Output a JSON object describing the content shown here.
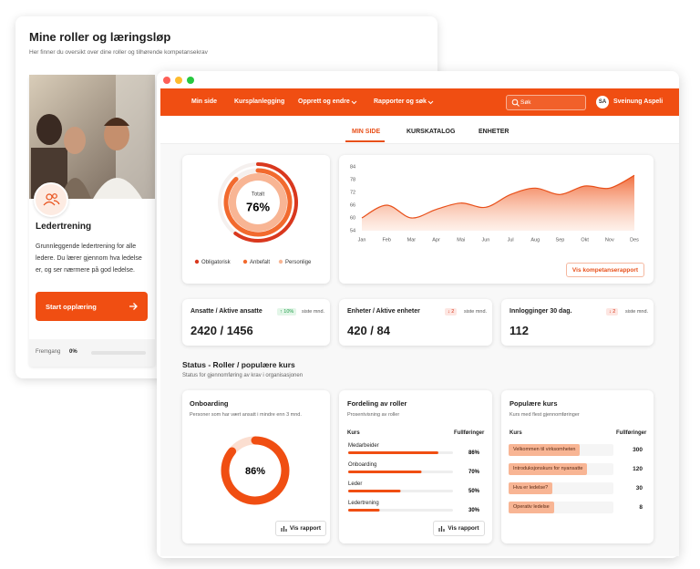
{
  "back_card": {
    "title": "Mine roller og læringsløp",
    "subtitle": "Her finner du oversikt over dine roller og tilhørende kompetansekrav",
    "course": {
      "title": "Ledertrening",
      "description": "Grunnleggende ledertrening for alle ledere. Du lærer gjennom hva ledelse er, og ser nærmere på god ledelse.",
      "button": "Start opplæring",
      "progress_label": "Fremgang",
      "progress": {
        "value": 0,
        "label": "0%"
      }
    }
  },
  "nav": {
    "items": [
      "Min side",
      "Kursplanlegging",
      "Opprett og endre",
      "Rapporter og søk"
    ],
    "search": "Søk",
    "user_initials": "SA",
    "user_name": "Sveinung Aspeli"
  },
  "tabs": [
    "MIN SIDE",
    "KURSKATALOG",
    "ENHETER"
  ],
  "overview_donut": {
    "center_label": "Totalt",
    "value": 76,
    "value_label": "76%",
    "series": [
      {
        "name": "Obligatorisk",
        "color": "#d9381e",
        "value": 60
      },
      {
        "name": "Anbefalt",
        "color": "#f26a2e",
        "value": 88
      },
      {
        "name": "Personlige",
        "color": "#f8b594",
        "value": 100
      }
    ]
  },
  "trend_chart": {
    "type": "area",
    "categories": [
      "Jan",
      "Feb",
      "Mar",
      "Apr",
      "Mai",
      "Jun",
      "Jul",
      "Aug",
      "Sep",
      "Okt",
      "Nov",
      "Des"
    ],
    "values": [
      60,
      66,
      60,
      64,
      67,
      65,
      71,
      74,
      71,
      75,
      74,
      80
    ],
    "color": "#e8501a",
    "ylim": [
      54,
      84
    ],
    "yticks": [
      54,
      60,
      66,
      72,
      78,
      84
    ],
    "button": "Vis kompetanserapport"
  },
  "kpis": [
    {
      "title": "Ansatte / Aktive ansatte",
      "badge": "↑ 10%",
      "badge_note": "siste mnd.",
      "value": "2420 / 1456"
    },
    {
      "title": "Enheter / Aktive enheter",
      "badge": "↓ 2",
      "badge_note": "siste mnd.",
      "value": "420 / 84"
    },
    {
      "title": "Innlogginger 30 dag.",
      "badge": "↓ 2",
      "badge_note": "siste mnd.",
      "value": "112"
    }
  ],
  "status": {
    "title": "Status - Roller / populære kurs",
    "subtitle": "Status for gjennomføring av krav i organisasjonen"
  },
  "onboarding": {
    "title": "Onboarding",
    "description": "Personer som har vært ansatt i mindre enn 3 mnd.",
    "value": 86,
    "value_label": "86%",
    "button": "Vis rapport"
  },
  "roles": {
    "title": "Fordeling av roller",
    "subtitle": "Prosentvisning av roller",
    "columns": [
      "Kurs",
      "Fullføringer"
    ],
    "button": "Vis rapport",
    "rows": [
      {
        "name": "Medarbeider",
        "value": 86,
        "value_label": "86%"
      },
      {
        "name": "Onboarding",
        "value": 70,
        "value_label": "70%"
      },
      {
        "name": "Leder",
        "value": 50,
        "value_label": "50%"
      },
      {
        "name": "Ledertrening",
        "value": 30,
        "value_label": "30%"
      }
    ]
  },
  "popular": {
    "title": "Populære kurs",
    "subtitle": "Kurs med flest gjennomføringer",
    "columns": [
      "Kurs",
      "Fullføringer"
    ],
    "rows": [
      {
        "name": "Velkommen til virksomheten",
        "value": 300
      },
      {
        "name": "Introduksjonskurs for nyansatte",
        "value": 120
      },
      {
        "name": "Hva er ledelse?",
        "value": 30
      },
      {
        "name": "Operativ ledelse",
        "value": 8
      }
    ]
  }
}
